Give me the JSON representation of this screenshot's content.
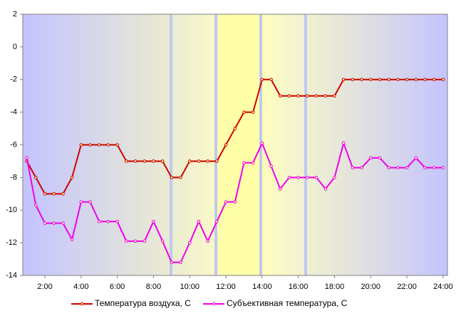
{
  "chart_data": {
    "type": "line",
    "x": [
      1,
      1.5,
      2,
      2.5,
      3,
      3.5,
      4,
      4.5,
      5,
      5.5,
      6,
      6.5,
      7,
      7.5,
      8,
      8.5,
      9,
      9.5,
      10,
      10.5,
      11,
      11.5,
      12,
      12.5,
      13,
      13.5,
      14,
      14.5,
      15,
      15.5,
      16,
      16.5,
      17,
      17.5,
      18,
      18.5,
      19,
      19.5,
      20,
      20.5,
      21,
      21.5,
      22,
      22.5,
      23,
      23.5,
      24
    ],
    "series": [
      {
        "name": "Температура воздуха, С",
        "color": "#cc0000",
        "values": [
          -7,
          -8,
          -9,
          -9,
          -9,
          -8,
          -6,
          -6,
          -6,
          -6,
          -6,
          -7,
          -7,
          -7,
          -7,
          -7,
          -8,
          -8,
          -7,
          -7,
          -7,
          -7,
          -6,
          -5,
          -4,
          -4,
          -2,
          -2,
          -3,
          -3,
          -3,
          -3,
          -3,
          -3,
          -3,
          -2,
          -2,
          -2,
          -2,
          -2,
          -2,
          -2,
          -2,
          -2,
          -2,
          -2,
          -2
        ]
      },
      {
        "name": "Субъективная температура, С",
        "color": "#ee00ee",
        "values": [
          -6.8,
          -9.7,
          -10.8,
          -10.8,
          -10.8,
          -11.8,
          -9.5,
          -9.5,
          -10.7,
          -10.7,
          -10.7,
          -11.9,
          -11.9,
          -11.9,
          -10.7,
          -11.9,
          -13.2,
          -13.2,
          -12,
          -10.7,
          -11.9,
          -10.7,
          -9.5,
          -9.5,
          -7.1,
          -7.1,
          -5.9,
          -7.3,
          -8.7,
          -8,
          -8,
          -8,
          -8,
          -8.7,
          -8,
          -5.9,
          -7.4,
          -7.4,
          -6.8,
          -6.8,
          -7.4,
          -7.4,
          -7.4,
          -6.8,
          -7.4,
          -7.4,
          -7.4
        ]
      }
    ],
    "xlim": [
      0.78,
      24.24
    ],
    "xticks": [
      {
        "value": 2,
        "label": "2:00"
      },
      {
        "value": 4,
        "label": "4:00"
      },
      {
        "value": 6,
        "label": "6:00"
      },
      {
        "value": 8,
        "label": "8:00"
      },
      {
        "value": 10,
        "label": "10:00"
      },
      {
        "value": 12,
        "label": "12:00"
      },
      {
        "value": 14,
        "label": "14:00"
      },
      {
        "value": 16,
        "label": "16:00"
      },
      {
        "value": 18,
        "label": "18:00"
      },
      {
        "value": 20,
        "label": "20:00"
      },
      {
        "value": 22,
        "label": "22:00"
      },
      {
        "value": 24,
        "label": "24:00"
      }
    ],
    "ylim": [
      -14,
      2
    ],
    "yticks": [
      2,
      0,
      -2,
      -4,
      -6,
      -8,
      -10,
      -12,
      -14
    ],
    "legend": "bottom"
  }
}
